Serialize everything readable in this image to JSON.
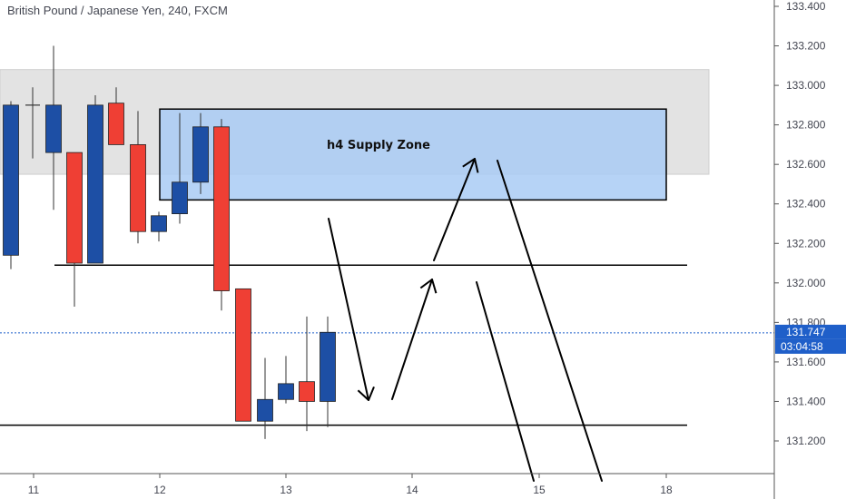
{
  "header": {
    "title": "British Pound / Japanese Yen, 240, FXCM"
  },
  "colors": {
    "bull": "#1d4fa5",
    "bear": "#ef3f34",
    "wick": "#333333",
    "zone_fill": "#a9cbf4",
    "zone_border": "#000000",
    "gray_zone": "#e3e3e3",
    "last_price": "#1f5fc9"
  },
  "chart_data": {
    "type": "candlestick",
    "y_axis": {
      "range": [
        130.95,
        133.45
      ],
      "ticks": [
        "133.400",
        "133.200",
        "133.000",
        "132.800",
        "132.600",
        "132.400",
        "132.200",
        "132.000",
        "131.800",
        "131.600",
        "131.400",
        "131.200"
      ]
    },
    "x_axis": {
      "ticks": [
        "11",
        "12",
        "13",
        "14",
        "15",
        "18"
      ]
    },
    "candles": [
      {
        "x": 11.0,
        "open": 132.14,
        "high": 132.92,
        "low": 132.07,
        "close": 132.9
      },
      {
        "x": 11.18,
        "open": 132.66,
        "high": 133.2,
        "low": 132.37,
        "close": 132.9
      },
      {
        "x": 11.32,
        "open": 132.66,
        "high": 132.66,
        "low": 131.88,
        "close": 132.1
      },
      {
        "x": 11.47,
        "open": 132.1,
        "high": 132.95,
        "low": 132.1,
        "close": 132.9
      },
      {
        "x": 11.64,
        "open": 132.91,
        "high": 132.99,
        "low": 132.7,
        "close": 132.7
      },
      {
        "x": 11.8,
        "open": 132.7,
        "high": 132.87,
        "low": 132.2,
        "close": 132.26
      },
      {
        "x": 12.0,
        "open": 132.26,
        "high": 132.36,
        "low": 132.21,
        "close": 132.34
      },
      {
        "x": 12.17,
        "open": 132.35,
        "high": 132.86,
        "low": 132.3,
        "close": 132.51
      },
      {
        "x": 12.34,
        "open": 132.51,
        "high": 132.86,
        "low": 132.45,
        "close": 132.79
      },
      {
        "x": 12.5,
        "open": 132.79,
        "high": 132.83,
        "low": 131.86,
        "close": 131.96
      },
      {
        "x": 12.67,
        "open": 131.97,
        "high": 131.97,
        "low": 131.3,
        "close": 131.3
      },
      {
        "x": 12.84,
        "open": 131.3,
        "high": 131.62,
        "low": 131.21,
        "close": 131.41
      },
      {
        "x": 13.0,
        "open": 131.41,
        "high": 131.63,
        "low": 131.39,
        "close": 131.49
      },
      {
        "x": 13.17,
        "open": 131.5,
        "high": 131.83,
        "low": 131.25,
        "close": 131.4
      },
      {
        "x": 13.34,
        "open": 131.4,
        "high": 131.83,
        "low": 131.27,
        "close": 131.75
      }
    ],
    "gray_zone": {
      "x_from": 10.75,
      "x_to": 15.35,
      "y_high": 133.08,
      "y_low": 132.55
    },
    "supply_zone": {
      "label": "h4 Supply Zone",
      "x_from": 12.0,
      "x_to": 15.0,
      "y_high": 132.88,
      "y_low": 132.42
    },
    "horizontal_lines": [
      {
        "y": 132.09,
        "x_from": 11.18,
        "x_to": 15.17
      },
      {
        "y": 131.28,
        "x_from": 10.75,
        "x_to": 15.17
      }
    ],
    "last_price": {
      "value": "131.747",
      "countdown": "03:04:58",
      "y": 131.747
    },
    "arrows": [
      {
        "points": [
          [
            13.32,
            132.4
          ],
          [
            13.66,
            131.38
          ]
        ],
        "head": true
      },
      {
        "points": [
          [
            13.76,
            131.4
          ],
          [
            14.15,
            132.02
          ]
        ],
        "head": true
      },
      {
        "points": [
          [
            14.18,
            132.12
          ],
          [
            14.55,
            132.65
          ]
        ],
        "head": true
      },
      {
        "points": [
          [
            14.62,
            132.62
          ],
          [
            15.5,
            130.95
          ]
        ],
        "head": false
      },
      {
        "points": [
          [
            14.45,
            132.0
          ],
          [
            14.95,
            130.95
          ]
        ],
        "head": false
      }
    ]
  }
}
